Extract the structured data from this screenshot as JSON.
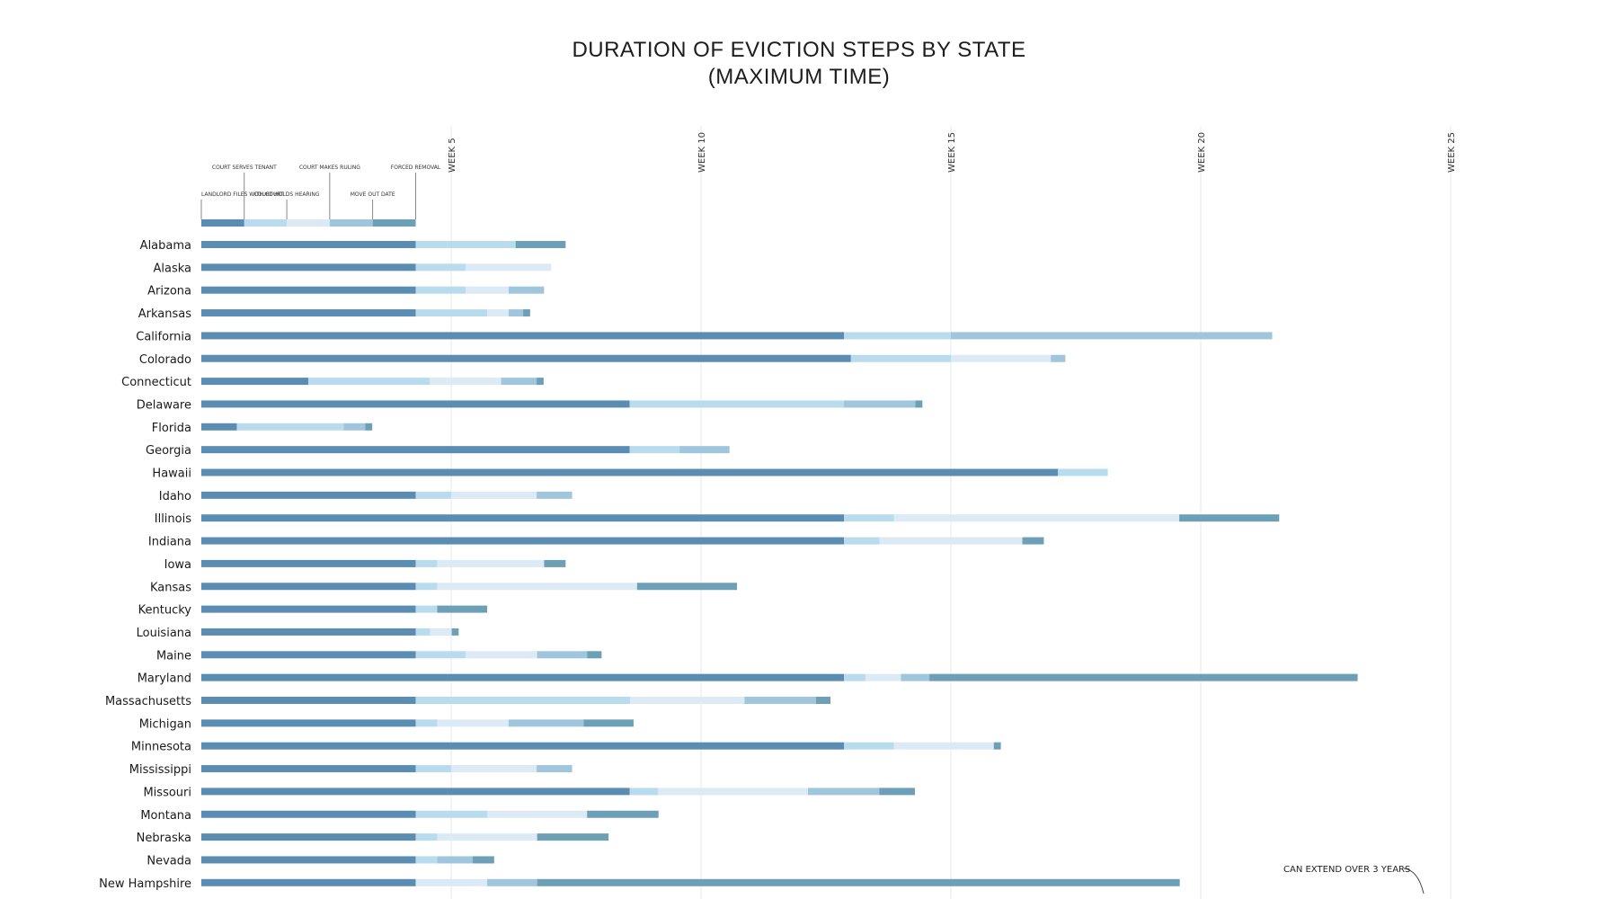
{
  "colors": {
    "step_files": "#5b8db3",
    "step_serves": "#b8dcee",
    "step_hearing": "#dbeaf5",
    "step_ruling": "#9fc6dc",
    "step_moveout": "#6d9fb6",
    "gridline": "#e6e9ec"
  },
  "chart_data": {
    "type": "bar",
    "orientation": "horizontal",
    "stacked": true,
    "title": "DURATION OF EVICTION STEPS BY STATE",
    "subtitle": "(MAXIMUM TIME)",
    "xlim": [
      0,
      25
    ],
    "xticks": [
      {
        "value": 5,
        "label": "WEEK 5"
      },
      {
        "value": 10,
        "label": "WEEK 10"
      },
      {
        "value": 15,
        "label": "WEEK 15"
      },
      {
        "value": 20,
        "label": "WEEK 20"
      },
      {
        "value": 25,
        "label": "WEEK 25"
      }
    ],
    "legend": {
      "placement": "top-left",
      "items": [
        {
          "label": "LANDLORD FILES WITH COURT",
          "start": 0,
          "end": 0.86
        },
        {
          "label": "COURT SERVES TENANT",
          "start": 0.86,
          "end": 1.71
        },
        {
          "label": "COURT HOLDS HEARING",
          "start": 1.71,
          "end": 2.57
        },
        {
          "label": "COURT MAKES RULING",
          "start": 2.57,
          "end": 3.43
        },
        {
          "label": "MOVE OUT DATE",
          "start": 3.43,
          "end": 4.29
        },
        {
          "label": "FORCED REMOVAL",
          "start": 4.29,
          "end": 4.29
        }
      ]
    },
    "series_names": [
      "LANDLORD FILES WITH COURT",
      "COURT SERVES TENANT",
      "COURT HOLDS HEARING",
      "COURT MAKES RULING",
      "MOVE OUT DATE"
    ],
    "categories": [
      "Alabama",
      "Alaska",
      "Arizona",
      "Arkansas",
      "California",
      "Colorado",
      "Connecticut",
      "Delaware",
      "Florida",
      "Georgia",
      "Hawaii",
      "Idaho",
      "Illinois",
      "Indiana",
      "Iowa",
      "Kansas",
      "Kentucky",
      "Louisiana",
      "Maine",
      "Maryland",
      "Massachusetts",
      "Michigan",
      "Minnesota",
      "Mississippi",
      "Missouri",
      "Montana",
      "Nebraska",
      "Nevada",
      "New Hampshire"
    ],
    "segments_weeks": [
      [
        4.29,
        2.0,
        0,
        0,
        1.0
      ],
      [
        4.29,
        1.0,
        1.71,
        0,
        0
      ],
      [
        4.29,
        1.0,
        0.86,
        0.71,
        0
      ],
      [
        4.29,
        1.43,
        0.43,
        0.29,
        0.14
      ],
      [
        12.86,
        2.14,
        0,
        6.43,
        0
      ],
      [
        13.0,
        2.0,
        2.0,
        0.29,
        0
      ],
      [
        2.14,
        2.43,
        1.43,
        0.71,
        0.14
      ],
      [
        8.57,
        4.29,
        0,
        1.43,
        0.14
      ],
      [
        0.71,
        2.14,
        0,
        0.43,
        0.14
      ],
      [
        8.57,
        1.0,
        0,
        1.0,
        0
      ],
      [
        17.14,
        1.0,
        0,
        0,
        0
      ],
      [
        4.29,
        0.71,
        1.71,
        0.71,
        0
      ],
      [
        12.86,
        1.0,
        5.71,
        0,
        2.0
      ],
      [
        12.86,
        0.71,
        2.86,
        0,
        0.43
      ],
      [
        4.29,
        0.43,
        2.14,
        0,
        0.43
      ],
      [
        4.29,
        0.43,
        4.0,
        0,
        2.0
      ],
      [
        4.29,
        0.43,
        0,
        0,
        1.0
      ],
      [
        4.29,
        0.29,
        0.43,
        0,
        0.14
      ],
      [
        4.29,
        1.0,
        1.43,
        1.0,
        0.29
      ],
      [
        12.86,
        0.43,
        0.71,
        0.57,
        8.57
      ],
      [
        4.29,
        4.29,
        2.29,
        1.43,
        0.29
      ],
      [
        4.29,
        0.43,
        1.43,
        1.5,
        1.0
      ],
      [
        12.86,
        1.0,
        2.0,
        0,
        0.14
      ],
      [
        4.29,
        0.71,
        1.71,
        0.71,
        0
      ],
      [
        8.57,
        0.57,
        3.0,
        1.43,
        0.71
      ],
      [
        4.29,
        1.43,
        2.0,
        0,
        1.43
      ],
      [
        4.29,
        0.43,
        2.0,
        0,
        1.43
      ],
      [
        4.29,
        0.43,
        0,
        0.71,
        0.43
      ],
      [
        4.29,
        0,
        1.43,
        1.0,
        12.86
      ]
    ],
    "annotation": "CAN EXTEND OVER 3 YEARS"
  }
}
